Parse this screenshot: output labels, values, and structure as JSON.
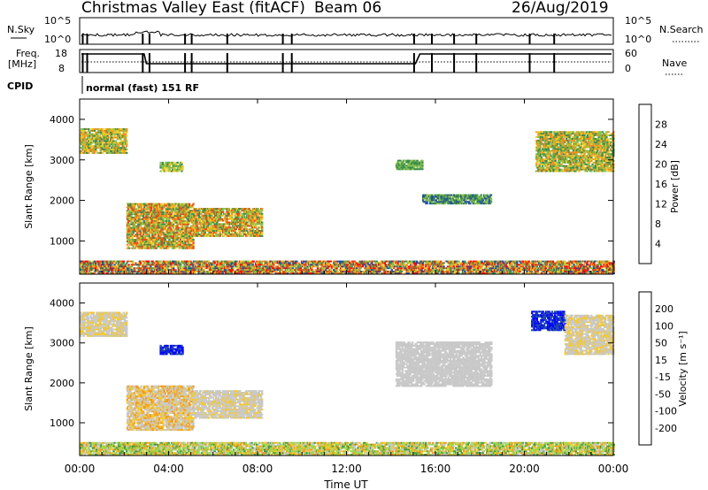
{
  "header": {
    "title": "Christmas Valley East (fitACF)",
    "beam": "Beam 06",
    "date": "26/Aug/2019"
  },
  "nsky": {
    "label": "N.Sky",
    "ticks": [
      "10^5",
      "10^0"
    ],
    "right_label": "N.Search",
    "right_ticks": [
      "10^5",
      "10^0"
    ]
  },
  "freq": {
    "label_line1": "Freq.",
    "label_line2": "[MHz]",
    "ticks": [
      "18",
      "8"
    ],
    "right_label": "Nave",
    "right_ticks": [
      "60",
      "0"
    ]
  },
  "cpid": {
    "label": "CPID",
    "text": "normal (fast) 151 RF"
  },
  "time_axis": {
    "label": "Time UT",
    "ticks": [
      "00:00",
      "04:00",
      "08:00",
      "12:00",
      "16:00",
      "20:00",
      "00:00"
    ]
  },
  "chart_data": [
    {
      "type": "heatmap",
      "name": "power",
      "xlabel": "Time UT",
      "ylabel": "Slant Range [km]",
      "xlim": [
        0,
        24
      ],
      "ylim": [
        180,
        4500
      ],
      "yticks": [
        1000,
        2000,
        3000,
        4000
      ],
      "colorbar": {
        "label": "Power [dB]",
        "ticks": [
          "4",
          "8",
          "12",
          "16",
          "20",
          "24",
          "28"
        ],
        "colors": [
          "#0000ff",
          "#1e4ba0",
          "#3a8c4c",
          "#85c048",
          "#f0c820",
          "#f28c1c",
          "#e64a12",
          "#ff0000"
        ]
      },
      "regions": [
        {
          "t": [
            0.0,
            2.1
          ],
          "r": [
            3150,
            3750
          ],
          "levels": [
            2,
            3,
            4,
            5
          ]
        },
        {
          "t": [
            2.1,
            5.1
          ],
          "r": [
            800,
            1900
          ],
          "levels": [
            2,
            3,
            4,
            5,
            6
          ]
        },
        {
          "t": [
            5.1,
            8.2
          ],
          "r": [
            1100,
            1800
          ],
          "levels": [
            2,
            3,
            4,
            5,
            6
          ]
        },
        {
          "t": [
            3.6,
            4.6
          ],
          "r": [
            2700,
            2950
          ],
          "levels": [
            2,
            3,
            4
          ]
        },
        {
          "t": [
            14.2,
            15.4
          ],
          "r": [
            2750,
            3000
          ],
          "levels": [
            2,
            3
          ]
        },
        {
          "t": [
            15.4,
            18.5
          ],
          "r": [
            1900,
            2150
          ],
          "levels": [
            1,
            2,
            3
          ]
        },
        {
          "t": [
            20.5,
            24.0
          ],
          "r": [
            2700,
            3700
          ],
          "levels": [
            2,
            3,
            4,
            5
          ]
        },
        {
          "t": [
            0.0,
            24.0
          ],
          "r": [
            180,
            480
          ],
          "levels": [
            1,
            2,
            3,
            4,
            5,
            6,
            7
          ]
        }
      ]
    },
    {
      "type": "heatmap",
      "name": "velocity",
      "xlabel": "Time UT",
      "ylabel": "Slant Range [km]",
      "xlim": [
        0,
        24
      ],
      "ylim": [
        180,
        4500
      ],
      "yticks": [
        1000,
        2000,
        3000,
        4000
      ],
      "colorbar": {
        "label": "Velocity [m s⁻¹]",
        "ticks": [
          "-200",
          "-100",
          "-50",
          "-15",
          "15",
          "50",
          "100",
          "200"
        ],
        "colors": [
          "#ff0000",
          "#f05010",
          "#f39a18",
          "#f5c828",
          "#c8c8c8",
          "#9ad44a",
          "#3a9c44",
          "#1e4ba0",
          "#0000ff"
        ]
      },
      "regions": [
        {
          "t": [
            0.0,
            2.1
          ],
          "r": [
            3150,
            3750
          ],
          "levels": [
            4,
            4,
            3
          ]
        },
        {
          "t": [
            2.1,
            5.1
          ],
          "r": [
            800,
            1900
          ],
          "levels": [
            2,
            3,
            4,
            4
          ]
        },
        {
          "t": [
            5.1,
            8.2
          ],
          "r": [
            1100,
            1800
          ],
          "levels": [
            3,
            4,
            4,
            4
          ]
        },
        {
          "t": [
            3.6,
            4.6
          ],
          "r": [
            2700,
            2950
          ],
          "levels": [
            7,
            8
          ]
        },
        {
          "t": [
            14.2,
            18.5
          ],
          "r": [
            1900,
            3000
          ],
          "levels": [
            4
          ]
        },
        {
          "t": [
            20.3,
            21.8
          ],
          "r": [
            3300,
            3800
          ],
          "levels": [
            7,
            8
          ]
        },
        {
          "t": [
            21.8,
            24.0
          ],
          "r": [
            2700,
            3700
          ],
          "levels": [
            4,
            4,
            3
          ]
        },
        {
          "t": [
            0.0,
            24.0
          ],
          "r": [
            180,
            480
          ],
          "levels": [
            2,
            3,
            4,
            5,
            5,
            6
          ]
        }
      ]
    }
  ]
}
